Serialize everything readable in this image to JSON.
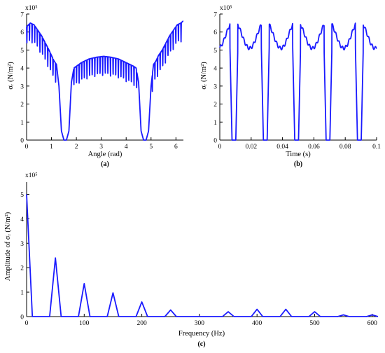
{
  "colors": {
    "series": "#1a1aff",
    "axis": "#000000"
  },
  "chart_data": [
    {
      "panel_label": "(a)",
      "type": "line",
      "xlabel": "Angle (rad)",
      "ylabel": "σᵣ (N/m²)",
      "multiplier": "x10⁵",
      "xlim": [
        0,
        6.3
      ],
      "ylim": [
        0,
        7
      ],
      "xticks": [
        0,
        1,
        2,
        3,
        4,
        5,
        6
      ],
      "yticks": [
        0,
        1,
        2,
        3,
        4,
        5,
        6,
        7
      ],
      "x": [
        0.0,
        0.15,
        0.3,
        0.45,
        0.6,
        0.75,
        0.9,
        1.0,
        1.1,
        1.2,
        1.3,
        1.4,
        1.5,
        1.6,
        1.7,
        1.8,
        1.9,
        2.0,
        2.2,
        2.5,
        2.8,
        3.1,
        3.4,
        3.7,
        4.0,
        4.3,
        4.4,
        4.5,
        4.6,
        4.7,
        4.8,
        4.9,
        5.0,
        5.1,
        5.2,
        5.3,
        5.45,
        5.6,
        5.75,
        5.9,
        6.05,
        6.2,
        6.28
      ],
      "y": [
        6.3,
        6.5,
        6.4,
        6.1,
        5.8,
        5.4,
        5.0,
        4.7,
        4.4,
        4.2,
        3.0,
        0.5,
        0.0,
        0.0,
        0.5,
        3.2,
        4.0,
        4.1,
        4.3,
        4.5,
        4.6,
        4.65,
        4.6,
        4.5,
        4.3,
        4.1,
        4.0,
        3.2,
        0.5,
        0.0,
        0.0,
        0.5,
        3.0,
        4.2,
        4.4,
        4.7,
        5.0,
        5.4,
        5.8,
        6.1,
        6.4,
        6.5,
        6.6
      ],
      "ripple": {
        "period": 0.105,
        "depth": 1.05,
        "duty": 0.2,
        "x_ranges": [
          [
            0,
            1.25
          ],
          [
            1.85,
            4.45
          ],
          [
            5.05,
            6.3
          ]
        ]
      }
    },
    {
      "panel_label": "(b)",
      "type": "line",
      "xlabel": "Time (s)",
      "ylabel": "σᵣ (N/m²)",
      "multiplier": "x10⁵",
      "xlim": [
        0,
        0.1
      ],
      "ylim": [
        0,
        7
      ],
      "xticks": [
        0,
        0.02,
        0.04,
        0.06,
        0.08,
        0.1
      ],
      "xticklabels": [
        "0",
        "0.02",
        "0.04",
        "0.06",
        "0.08",
        "0.1"
      ],
      "yticks": [
        0,
        1,
        2,
        3,
        4,
        5,
        6,
        7
      ],
      "period": 0.02,
      "dip_centers": [
        0.009,
        0.029,
        0.049,
        0.069,
        0.089
      ],
      "dip_halfwidth_bottom": 0.0012,
      "peak_value": 6.65,
      "shoulder_value": 5.1
    },
    {
      "panel_label": "(c)",
      "type": "line",
      "xlabel": "Frequency (Hz)",
      "ylabel": "Amplitude of σᵣ (N/m²)",
      "multiplier": "x10⁵",
      "xlim": [
        0,
        610
      ],
      "ylim": [
        0,
        5.5
      ],
      "xticks": [
        0,
        100,
        200,
        300,
        400,
        500,
        600
      ],
      "yticks": [
        0,
        1,
        2,
        3,
        4,
        5
      ],
      "x": [
        0,
        10,
        40,
        50,
        60,
        90,
        100,
        110,
        140,
        150,
        160,
        190,
        200,
        210,
        240,
        250,
        260,
        340,
        350,
        360,
        390,
        400,
        410,
        440,
        450,
        460,
        490,
        500,
        510,
        540,
        550,
        560,
        590,
        600,
        610
      ],
      "y": [
        5.0,
        0.0,
        0.0,
        2.4,
        0.0,
        0.0,
        1.35,
        0.0,
        0.0,
        0.97,
        0.0,
        0.0,
        0.6,
        0.0,
        0.0,
        0.27,
        0.0,
        0.0,
        0.2,
        0.0,
        0.0,
        0.3,
        0.0,
        0.0,
        0.3,
        0.0,
        0.0,
        0.2,
        0.0,
        0.0,
        0.07,
        0.0,
        0.0,
        0.07,
        0.0
      ]
    }
  ]
}
